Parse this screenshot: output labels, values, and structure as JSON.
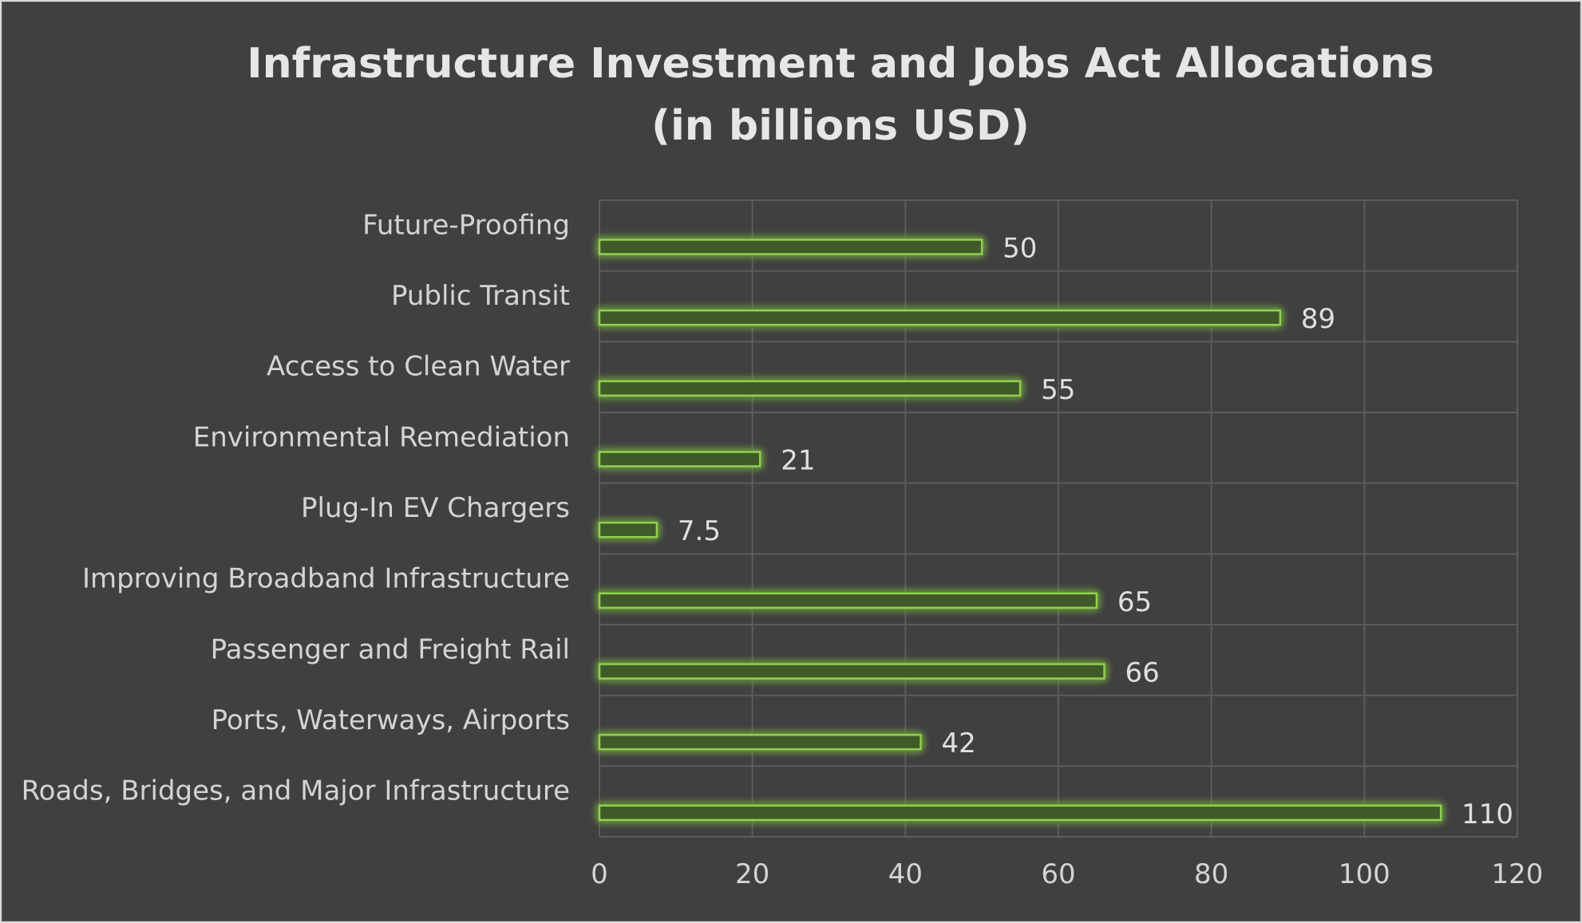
{
  "chart_data": {
    "type": "bar",
    "orientation": "horizontal",
    "title": "Infrastructure Investment and Jobs Act Allocations",
    "subtitle": "(in billions USD)",
    "categories": [
      "Roads, Bridges, and Major Infrastructure",
      "Ports, Waterways, Airports",
      "Passenger and Freight Rail",
      "Improving Broadband Infrastructure",
      "Plug-In EV Chargers",
      "Environmental Remediation",
      "Access to Clean Water",
      "Public Transit",
      "Future-Proofing"
    ],
    "values": [
      110,
      42,
      66,
      65,
      7.5,
      21,
      55,
      89,
      50
    ],
    "data_labels": [
      "110",
      "42",
      "66",
      "65",
      "7.5",
      "21",
      "55",
      "89",
      "50"
    ],
    "xticks": [
      "0",
      "20",
      "40",
      "60",
      "80",
      "100",
      "120"
    ],
    "xlim": [
      0,
      120
    ],
    "grid": true,
    "legend": "none",
    "colors": {
      "background": "#404040",
      "bar_fill": "#3f5a2c",
      "bar_stroke": "#8fd14f",
      "glow": "#7cc444",
      "grid": "#5c5c5c",
      "text": "#d4d4d4"
    }
  }
}
